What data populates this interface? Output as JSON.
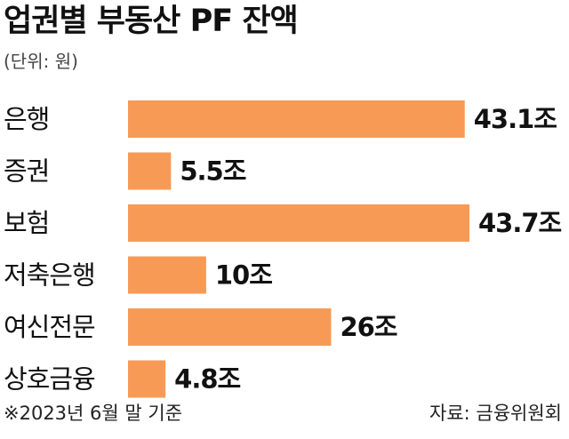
{
  "chart_data": {
    "type": "bar",
    "orientation": "horizontal",
    "title": "업권별 부동산 PF 잔액",
    "unit_note": "(단위: 원)",
    "categories": [
      "은행",
      "증권",
      "보험",
      "저축은행",
      "여신전문",
      "상호금융"
    ],
    "values": [
      43.1,
      5.5,
      43.7,
      10,
      26,
      4.8
    ],
    "value_labels": [
      "43.1조",
      "5.5조",
      "43.7조",
      "10조",
      "26조",
      "4.8조"
    ],
    "bar_color": "#F79A55",
    "grid": false,
    "legend": "none",
    "xlim": [
      0,
      43.7
    ]
  },
  "footer": {
    "note": "※2023년 6월 말 기준",
    "source": "자료: 금융위원회"
  }
}
